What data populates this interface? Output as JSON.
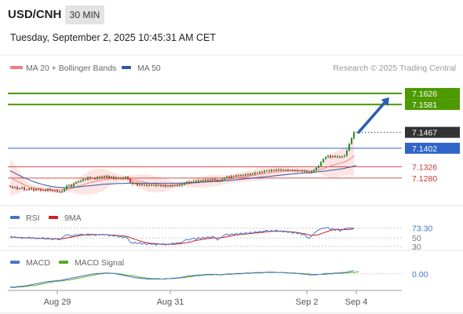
{
  "header": {
    "symbol": "USD/CNH",
    "interval": "30 MIN",
    "datetime": "Tuesday, September 2, 2025 10:45:31 AM CET",
    "credit": "Research © 2025 Trading Central"
  },
  "colors": {
    "ma20": "#f08080",
    "ma50": "#2c5aa0",
    "band_fill": "#fde0e0",
    "bull": "#2e8b2e",
    "bear": "#cc2b2b",
    "resistance": "#4d9a00",
    "support": "#cc3333",
    "pivot": "#2f64c8",
    "arrow": "#2a5db0",
    "rsi": "#4a74c9",
    "rsi_ma": "#cc2222",
    "macd": "#4a74c9",
    "macd_signal": "#55aa22"
  },
  "chart_data": [
    {
      "type": "candlestick",
      "legend": [
        {
          "key": "ma20",
          "label": "MA 20 + Bollinger Bands"
        },
        {
          "key": "ma50",
          "label": "MA 50"
        }
      ],
      "ylim": [
        7.118,
        7.17
      ],
      "x_ticks": [
        {
          "index": 20,
          "label": "Aug 29"
        },
        {
          "index": 68,
          "label": "Aug 31"
        },
        {
          "index": 126,
          "label": "Sep 2"
        },
        {
          "index": 147,
          "label": "Sep 4"
        }
      ],
      "candles_close": [
        7.1245,
        7.124,
        7.1242,
        7.1236,
        7.1238,
        7.1241,
        7.1233,
        7.1232,
        7.1238,
        7.1235,
        7.123,
        7.1236,
        7.1234,
        7.123,
        7.1232,
        7.1228,
        7.1235,
        7.1231,
        7.1227,
        7.1229,
        7.1225,
        7.1222,
        7.1226,
        7.1235,
        7.1248,
        7.1252,
        7.1246,
        7.1257,
        7.1263,
        7.1266,
        7.1269,
        7.1275,
        7.1273,
        7.1283,
        7.1278,
        7.1281,
        7.1276,
        7.1284,
        7.128,
        7.1287,
        7.1283,
        7.1289,
        7.128,
        7.1285,
        7.1277,
        7.1282,
        7.1277,
        7.1281,
        7.1277,
        7.1285,
        7.1276,
        7.1262,
        7.1257,
        7.126,
        7.1251,
        7.1255,
        7.125,
        7.1253,
        7.1249,
        7.1252,
        7.125,
        7.1251,
        7.1248,
        7.1251,
        7.1247,
        7.125,
        7.1246,
        7.1249,
        7.1247,
        7.125,
        7.1248,
        7.1252,
        7.1251,
        7.1253,
        7.1259,
        7.1264,
        7.1262,
        7.1265,
        7.1268,
        7.1264,
        7.127,
        7.1267,
        7.1272,
        7.1269,
        7.1274,
        7.1271,
        7.1276,
        7.1273,
        7.1266,
        7.127,
        7.1275,
        7.1281,
        7.1286,
        7.1282,
        7.1288,
        7.1286,
        7.1291,
        7.1288,
        7.1293,
        7.129,
        7.1295,
        7.1292,
        7.1298,
        7.1296,
        7.1302,
        7.13,
        7.1305,
        7.1304,
        7.1309,
        7.1311,
        7.1308,
        7.1313,
        7.131,
        7.1315,
        7.1313,
        7.1314,
        7.1312,
        7.1313,
        7.1311,
        7.1313,
        7.131,
        7.1312,
        7.1309,
        7.1311,
        7.1308,
        7.131,
        7.1305,
        7.1302,
        7.1307,
        7.1312,
        7.1322,
        7.133,
        7.1345,
        7.1358,
        7.1366,
        7.1371,
        7.1365,
        7.137,
        7.1366,
        7.1369,
        7.1364,
        7.1368,
        7.1372,
        7.1392,
        7.142,
        7.1443,
        7.1467
      ],
      "ma20": [
        7.1282,
        7.1277,
        7.1272,
        7.1267,
        7.1262,
        7.1257,
        7.1252,
        7.1248,
        7.1245,
        7.1242,
        7.124,
        7.1238,
        7.1236,
        7.1235,
        7.1234,
        7.1233,
        7.1233,
        7.1232,
        7.1232,
        7.1231,
        7.1231,
        7.1231,
        7.1232,
        7.1233,
        7.1234,
        7.1236,
        7.1238,
        7.1241,
        7.1244,
        7.1247,
        7.125,
        7.1253,
        7.1256,
        7.1259,
        7.1262,
        7.1264,
        7.1266,
        7.1268,
        7.127,
        7.1272,
        7.1274,
        7.1275,
        7.1276,
        7.1277,
        7.1278,
        7.1279,
        7.1279,
        7.1279,
        7.1279,
        7.1278,
        7.1277,
        7.1275,
        7.1273,
        7.1271,
        7.1269,
        7.1267,
        7.1265,
        7.1263,
        7.1261,
        7.1259,
        7.1257,
        7.1256,
        7.1255,
        7.1254,
        7.1253,
        7.1252,
        7.1252,
        7.1251,
        7.1251,
        7.1251,
        7.1252,
        7.1252,
        7.1253,
        7.1254,
        7.1255,
        7.1256,
        7.1257,
        7.1258,
        7.126,
        7.1261,
        7.1262,
        7.1263,
        7.1265,
        7.1266,
        7.1267,
        7.1268,
        7.1269,
        7.127,
        7.127,
        7.1271,
        7.1272,
        7.1273,
        7.1274,
        7.1275,
        7.1277,
        7.1278,
        7.128,
        7.1281,
        7.1283,
        7.1284,
        7.1286,
        7.1287,
        7.1289,
        7.129,
        7.1292,
        7.1294,
        7.1296,
        7.1297,
        7.1299,
        7.13,
        7.1302,
        7.1303,
        7.1304,
        7.1305,
        7.1306,
        7.1307,
        7.1308,
        7.1309,
        7.1309,
        7.131,
        7.131,
        7.131,
        7.131,
        7.131,
        7.131,
        7.131,
        7.1309,
        7.1309,
        7.1309,
        7.131,
        7.1311,
        7.1313,
        7.1316,
        7.1319,
        7.1322,
        7.1326,
        7.1329,
        7.1332,
        7.1335,
        7.1338,
        7.1341,
        7.1343,
        7.1346,
        7.135,
        7.1356,
        7.1363,
        7.1372
      ],
      "ma50": [
        7.131,
        7.1305,
        7.13,
        7.1295,
        7.129,
        7.1285,
        7.1281,
        7.1277,
        7.1273,
        7.1269,
        7.1265,
        7.1262,
        7.1259,
        7.1256,
        7.1253,
        7.1251,
        7.1249,
        7.1247,
        7.1245,
        7.1244,
        7.1243,
        7.1242,
        7.1241,
        7.1241,
        7.1241,
        7.1241,
        7.1242,
        7.1242,
        7.1243,
        7.1244,
        7.1245,
        7.1246,
        7.1247,
        7.1248,
        7.1249,
        7.125,
        7.1251,
        7.1252,
        7.1253,
        7.1254,
        7.1255,
        7.1255,
        7.1256,
        7.1256,
        7.1257,
        7.1257,
        7.1258,
        7.1258,
        7.1258,
        7.1259,
        7.1259,
        7.1259,
        7.1259,
        7.1259,
        7.1259,
        7.1259,
        7.1259,
        7.1259,
        7.1259,
        7.1259,
        7.1259,
        7.1259,
        7.1259,
        7.1259,
        7.1259,
        7.1259,
        7.1259,
        7.1259,
        7.1259,
        7.1259,
        7.1259,
        7.1259,
        7.1259,
        7.1259,
        7.126,
        7.126,
        7.126,
        7.1261,
        7.1261,
        7.1262,
        7.1262,
        7.1263,
        7.1263,
        7.1264,
        7.1264,
        7.1265,
        7.1266,
        7.1266,
        7.1267,
        7.1268,
        7.1268,
        7.1269,
        7.127,
        7.127,
        7.1271,
        7.1272,
        7.1273,
        7.1274,
        7.1275,
        7.1276,
        7.1277,
        7.1278,
        7.1279,
        7.128,
        7.1281,
        7.1282,
        7.1283,
        7.1284,
        7.1285,
        7.1286,
        7.1287,
        7.1288,
        7.1289,
        7.129,
        7.1291,
        7.1292,
        7.1293,
        7.1294,
        7.1295,
        7.1296,
        7.1297,
        7.1298,
        7.1298,
        7.1299,
        7.13,
        7.1301,
        7.1302,
        7.1302,
        7.1303,
        7.1304,
        7.1305,
        7.1306,
        7.1307,
        7.1308,
        7.1309,
        7.131,
        7.1312,
        7.1313,
        7.1314,
        7.1315,
        7.1317,
        7.1318,
        7.132,
        7.1322,
        7.1324,
        7.1326,
        7.1329,
        7.1332
      ],
      "levels": [
        {
          "value": 7.1626,
          "label": "7.1626",
          "role": "resistance"
        },
        {
          "value": 7.1581,
          "label": "7.1581",
          "role": "resistance"
        },
        {
          "value": 7.1467,
          "label": "7.1467",
          "role": "last"
        },
        {
          "value": 7.1402,
          "label": "7.1402",
          "role": "pivot"
        },
        {
          "value": 7.1326,
          "label": "7.1326",
          "role": "support"
        },
        {
          "value": 7.128,
          "label": "7.1280",
          "role": "support"
        }
      ],
      "arrow": {
        "from_index": 148,
        "from_value": 7.1467,
        "to_index": 161,
        "to_value": 7.161
      }
    },
    {
      "type": "line",
      "name": "rsi",
      "legend": [
        {
          "key": "rsi",
          "label": "RSI"
        },
        {
          "key": "rsi_ma",
          "label": "9MA"
        }
      ],
      "ylim": [
        26,
        82
      ],
      "labels": [
        "73.30",
        "50",
        "30"
      ],
      "label_values": [
        73.3,
        50,
        30
      ],
      "rsi": [
        52,
        51,
        53,
        50,
        52,
        49,
        51,
        50,
        52,
        49,
        51,
        48,
        50,
        49,
        51,
        47,
        50,
        48,
        46,
        49,
        47,
        46,
        50,
        55,
        58,
        57,
        54,
        56,
        58,
        57,
        59,
        58,
        57,
        60,
        58,
        59,
        56,
        58,
        57,
        59,
        57,
        58,
        55,
        57,
        54,
        56,
        52,
        54,
        50,
        53,
        48,
        40,
        37,
        40,
        36,
        39,
        35,
        38,
        34,
        37,
        35,
        36,
        33,
        36,
        34,
        37,
        33,
        36,
        35,
        38,
        36,
        39,
        38,
        40,
        44,
        47,
        45,
        48,
        50,
        46,
        51,
        48,
        52,
        49,
        53,
        50,
        54,
        51,
        45,
        49,
        53,
        57,
        60,
        56,
        60,
        58,
        61,
        58,
        62,
        59,
        63,
        60,
        64,
        61,
        65,
        63,
        66,
        64,
        67,
        68,
        65,
        68,
        65,
        69,
        66,
        67,
        64,
        66,
        63,
        65,
        61,
        64,
        60,
        62,
        57,
        59,
        52,
        49,
        55,
        60,
        66,
        69,
        72,
        73,
        74,
        75,
        70,
        73,
        68,
        71,
        66,
        69,
        72,
        73,
        74,
        73,
        73
      ],
      "rsi_ma": [
        53,
        52,
        52,
        51,
        51,
        51,
        50,
        50,
        50,
        50,
        50,
        49,
        49,
        49,
        49,
        48,
        48,
        48,
        48,
        48,
        48,
        48,
        48,
        49,
        50,
        51,
        52,
        53,
        54,
        55,
        56,
        57,
        57,
        57,
        57,
        58,
        58,
        58,
        58,
        58,
        58,
        58,
        57,
        57,
        57,
        56,
        56,
        55,
        55,
        54,
        53,
        51,
        49,
        47,
        45,
        43,
        41,
        40,
        39,
        38,
        37,
        37,
        36,
        36,
        35,
        35,
        35,
        35,
        35,
        35,
        35,
        36,
        36,
        37,
        38,
        39,
        40,
        41,
        43,
        44,
        45,
        46,
        47,
        48,
        49,
        49,
        50,
        50,
        50,
        50,
        51,
        52,
        53,
        54,
        55,
        56,
        57,
        58,
        58,
        59,
        59,
        60,
        60,
        61,
        62,
        62,
        63,
        63,
        64,
        65,
        65,
        66,
        66,
        66,
        66,
        66,
        66,
        66,
        65,
        65,
        64,
        64,
        63,
        62,
        61,
        60,
        59,
        57,
        56,
        56,
        57,
        58,
        60,
        62,
        64,
        66,
        68,
        69,
        70,
        71,
        70,
        70,
        70,
        70,
        70,
        71,
        72
      ],
      "xlim": [
        0,
        162
      ]
    },
    {
      "type": "line",
      "name": "macd",
      "legend": [
        {
          "key": "macd",
          "label": "MACD"
        },
        {
          "key": "macd_signal",
          "label": "MACD Signal"
        }
      ],
      "ylim": [
        -0.0032,
        0.0015
      ],
      "labels": [
        "0.00"
      ],
      "label_values": [
        0
      ],
      "macd": [
        -0.0028,
        -0.0028,
        -0.0028,
        -0.0027,
        -0.0027,
        -0.0026,
        -0.0026,
        -0.0025,
        -0.0024,
        -0.0023,
        -0.0022,
        -0.0021,
        -0.002,
        -0.0019,
        -0.0018,
        -0.0017,
        -0.0016,
        -0.0016,
        -0.0015,
        -0.0015,
        -0.0014,
        -0.0014,
        -0.0013,
        -0.0012,
        -0.0011,
        -0.001,
        -0.0009,
        -0.0008,
        -0.0007,
        -0.0006,
        -0.0005,
        -0.0004,
        -0.0003,
        -0.0002,
        -0.0001,
        0.0,
        0.0,
        0.0001,
        0.0001,
        0.0001,
        0.0002,
        0.0002,
        0.0002,
        0.0001,
        0.0001,
        0.0,
        -0.0001,
        -0.0002,
        -0.0003,
        -0.0004,
        -0.0005,
        -0.0006,
        -0.0007,
        -0.0008,
        -0.0009,
        -0.0009,
        -0.001,
        -0.001,
        -0.0011,
        -0.0011,
        -0.0011,
        -0.0011,
        -0.0011,
        -0.0011,
        -0.0011,
        -0.0011,
        -0.001,
        -0.001,
        -0.001,
        -0.0009,
        -0.0009,
        -0.0008,
        -0.0008,
        -0.0007,
        -0.0006,
        -0.0005,
        -0.0004,
        -0.0004,
        -0.0003,
        -0.0003,
        -0.0002,
        -0.0002,
        -0.0002,
        -0.0001,
        -0.0001,
        -0.0001,
        -0.0001,
        -0.0001,
        -0.0002,
        -0.0002,
        -0.0001,
        -0.0001,
        0.0,
        0.0,
        0.0,
        0.0,
        0.0001,
        0.0001,
        0.0001,
        0.0001,
        0.0002,
        0.0002,
        0.0002,
        0.0002,
        0.0003,
        0.0003,
        0.0003,
        0.0003,
        0.0003,
        0.0004,
        0.0004,
        0.0004,
        0.0004,
        0.0003,
        0.0003,
        0.0003,
        0.0003,
        0.0002,
        0.0002,
        0.0002,
        0.0001,
        0.0001,
        0.0001,
        0.0,
        0.0,
        -0.0001,
        -0.0001,
        -0.0002,
        -0.0002,
        -0.0002,
        -0.0002,
        -0.0001,
        -0.0001,
        0.0,
        0.0001,
        0.0001,
        0.0001,
        0.0001,
        0.0002,
        0.0002,
        0.0002,
        0.0003,
        0.0003,
        0.0004,
        0.0005,
        0.0006,
        0.0007
      ],
      "macd_signal": [
        -0.0029,
        -0.0029,
        -0.0029,
        -0.0028,
        -0.0028,
        -0.0028,
        -0.0027,
        -0.0027,
        -0.0026,
        -0.0025,
        -0.0025,
        -0.0024,
        -0.0023,
        -0.0022,
        -0.0021,
        -0.002,
        -0.0019,
        -0.0018,
        -0.0017,
        -0.0016,
        -0.0016,
        -0.0015,
        -0.0015,
        -0.0014,
        -0.0013,
        -0.0013,
        -0.0012,
        -0.0011,
        -0.001,
        -0.0009,
        -0.0008,
        -0.0007,
        -0.0006,
        -0.0005,
        -0.0004,
        -0.0003,
        -0.0002,
        -0.0001,
        0.0,
        0.0,
        0.0001,
        0.0001,
        0.0001,
        0.0001,
        0.0001,
        0.0001,
        0.0,
        0.0,
        -0.0001,
        -0.0002,
        -0.0003,
        -0.0003,
        -0.0004,
        -0.0005,
        -0.0006,
        -0.0007,
        -0.0008,
        -0.0008,
        -0.0009,
        -0.0009,
        -0.001,
        -0.001,
        -0.001,
        -0.001,
        -0.0011,
        -0.0011,
        -0.0011,
        -0.001,
        -0.001,
        -0.001,
        -0.001,
        -0.0009,
        -0.0009,
        -0.0008,
        -0.0008,
        -0.0007,
        -0.0006,
        -0.0006,
        -0.0005,
        -0.0004,
        -0.0004,
        -0.0003,
        -0.0003,
        -0.0002,
        -0.0002,
        -0.0002,
        -0.0002,
        -0.0001,
        -0.0001,
        -0.0002,
        -0.0002,
        -0.0001,
        -0.0001,
        -0.0001,
        -0.0001,
        0.0,
        0.0,
        0.0,
        0.0,
        0.0001,
        0.0001,
        0.0001,
        0.0001,
        0.0002,
        0.0002,
        0.0002,
        0.0002,
        0.0002,
        0.0003,
        0.0003,
        0.0003,
        0.0003,
        0.0003,
        0.0003,
        0.0003,
        0.0003,
        0.0003,
        0.0003,
        0.0002,
        0.0002,
        0.0002,
        0.0002,
        0.0001,
        0.0001,
        0.0001,
        0.0,
        0.0,
        0.0,
        -0.0001,
        -0.0001,
        -0.0001,
        -0.0001,
        -0.0001,
        -0.0001,
        -0.0001,
        0.0,
        0.0,
        0.0,
        0.0001,
        0.0001,
        0.0001,
        0.0001,
        0.0002,
        0.0002,
        0.0002,
        0.0003,
        0.0003,
        0.0004,
        0.0005
      ],
      "xlim": [
        0,
        162
      ]
    }
  ]
}
